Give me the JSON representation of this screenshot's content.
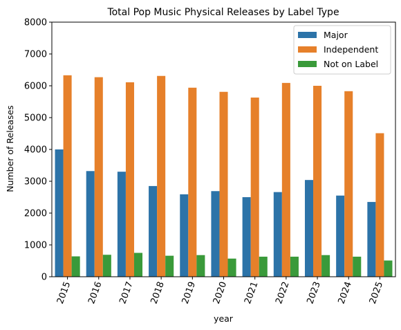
{
  "chart_data": {
    "type": "bar",
    "title": "Total Pop Music Physical Releases by Label Type",
    "xlabel": "year",
    "ylabel": "Number of Releases",
    "ylim": [
      0,
      8000
    ],
    "yticks": [
      "0",
      "1000",
      "2000",
      "3000",
      "4000",
      "5000",
      "6000",
      "7000",
      "8000"
    ],
    "categories": [
      "2015",
      "2016",
      "2017",
      "2018",
      "2019",
      "2020",
      "2021",
      "2022",
      "2023",
      "2024",
      "2025"
    ],
    "series": [
      {
        "name": "Major",
        "color": "#2c73a8",
        "values": [
          4000,
          3320,
          3300,
          2850,
          2590,
          2690,
          2500,
          2660,
          3040,
          2550,
          2350
        ]
      },
      {
        "name": "Independent",
        "color": "#e6802a",
        "values": [
          6330,
          6270,
          6110,
          6310,
          5940,
          5810,
          5630,
          6090,
          6000,
          5830,
          4510
        ]
      },
      {
        "name": "Not on Label",
        "color": "#3a9a3a",
        "values": [
          640,
          690,
          750,
          660,
          680,
          570,
          630,
          630,
          680,
          630,
          510
        ]
      }
    ],
    "grid": false,
    "legend_position": "top-right",
    "xtick_rotation": 70
  }
}
